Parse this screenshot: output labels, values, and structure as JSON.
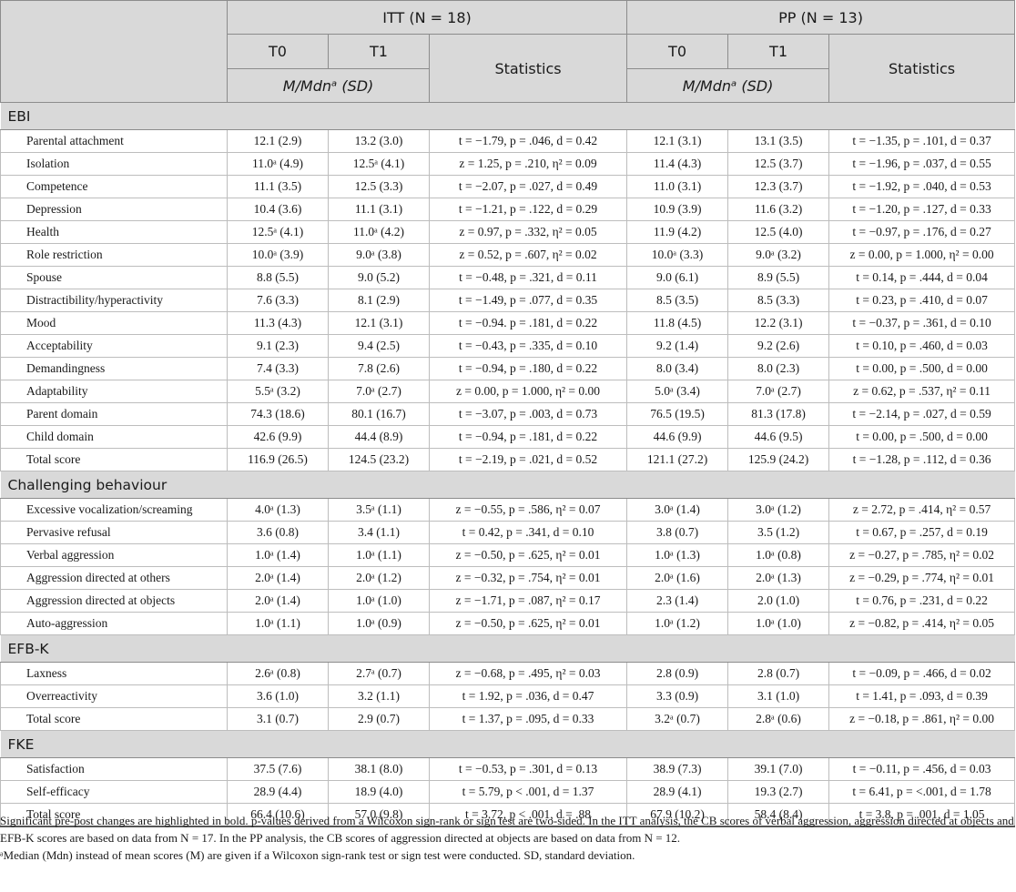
{
  "header": {
    "itt": "ITT (N = 18)",
    "pp": "PP (N = 13)",
    "t0": "T0",
    "t1": "T1",
    "statistics": "Statistics",
    "mdn": "M/Mdnᵃ (SD)"
  },
  "sections": [
    {
      "name": "EBI",
      "rows": [
        {
          "label": "Parental attachment",
          "itt_t0": "12.1 (2.9)",
          "itt_t1": "13.2 (3.0)",
          "itt_stat": "t = −1.79, p = .046, d = 0.42",
          "pp_t0": "12.1 (3.1)",
          "pp_t1": "13.1 (3.5)",
          "pp_stat": "t = −1.35, p = .101, d = 0.37"
        },
        {
          "label": "Isolation",
          "itt_t0": "11.0ᵃ (4.9)",
          "itt_t1": "12.5ᵃ (4.1)",
          "itt_stat": "z = 1.25, p = .210, η² = 0.09",
          "pp_t0": "11.4 (4.3)",
          "pp_t1": "12.5 (3.7)",
          "pp_stat": "t = −1.96, p = .037, d = 0.55"
        },
        {
          "label": "Competence",
          "itt_t0": "11.1 (3.5)",
          "itt_t1": "12.5 (3.3)",
          "itt_stat": "t = −2.07, p = .027, d = 0.49",
          "pp_t0": "11.0 (3.1)",
          "pp_t1": "12.3 (3.7)",
          "pp_stat": "t = −1.92, p = .040, d = 0.53"
        },
        {
          "label": "Depression",
          "itt_t0": "10.4 (3.6)",
          "itt_t1": "11.1 (3.1)",
          "itt_stat": "t = −1.21, p = .122, d = 0.29",
          "pp_t0": "10.9 (3.9)",
          "pp_t1": "11.6 (3.2)",
          "pp_stat": "t = −1.20, p = .127, d = 0.33"
        },
        {
          "label": "Health",
          "itt_t0": "12.5ᵃ (4.1)",
          "itt_t1": "11.0ᵃ (4.2)",
          "itt_stat": "z = 0.97, p = .332, η² = 0.05",
          "pp_t0": "11.9 (4.2)",
          "pp_t1": "12.5 (4.0)",
          "pp_stat": "t = −0.97, p = .176, d = 0.27"
        },
        {
          "label": "Role restriction",
          "itt_t0": "10.0ᵃ (3.9)",
          "itt_t1": "9.0ᵃ (3.8)",
          "itt_stat": "z = 0.52, p = .607, η² = 0.02",
          "pp_t0": "10.0ᵃ (3.3)",
          "pp_t1": "9.0ᵃ (3.2)",
          "pp_stat": "z = 0.00, p = 1.000, η² = 0.00"
        },
        {
          "label": "Spouse",
          "itt_t0": "8.8 (5.5)",
          "itt_t1": "9.0 (5.2)",
          "itt_stat": "t = −0.48, p = .321, d = 0.11",
          "pp_t0": "9.0 (6.1)",
          "pp_t1": "8.9 (5.5)",
          "pp_stat": "t = 0.14, p = .444, d = 0.04"
        },
        {
          "label": "Distractibility/hyperactivity",
          "itt_t0": "7.6 (3.3)",
          "itt_t1": "8.1 (2.9)",
          "itt_stat": "t = −1.49, p = .077, d = 0.35",
          "pp_t0": "8.5 (3.5)",
          "pp_t1": "8.5 (3.3)",
          "pp_stat": "t = 0.23, p = .410, d = 0.07"
        },
        {
          "label": "Mood",
          "itt_t0": "11.3 (4.3)",
          "itt_t1": "12.1 (3.1)",
          "itt_stat": "t = −0.94. p = .181, d = 0.22",
          "pp_t0": "11.8 (4.5)",
          "pp_t1": "12.2 (3.1)",
          "pp_stat": "t = −0.37, p = .361, d = 0.10"
        },
        {
          "label": "Acceptability",
          "itt_t0": "9.1 (2.3)",
          "itt_t1": "9.4 (2.5)",
          "itt_stat": "t = −0.43, p = .335, d = 0.10",
          "pp_t0": "9.2 (1.4)",
          "pp_t1": "9.2 (2.6)",
          "pp_stat": "t = 0.10, p = .460, d = 0.03"
        },
        {
          "label": "Demandingness",
          "itt_t0": "7.4 (3.3)",
          "itt_t1": "7.8 (2.6)",
          "itt_stat": "t = −0.94, p = .180, d = 0.22",
          "pp_t0": "8.0 (3.4)",
          "pp_t1": "8.0 (2.3)",
          "pp_stat": "t = 0.00, p = .500, d = 0.00"
        },
        {
          "label": "Adaptability",
          "itt_t0": "5.5ᵃ (3.2)",
          "itt_t1": "7.0ᵃ (2.7)",
          "itt_stat": "z = 0.00, p = 1.000, η² = 0.00",
          "pp_t0": "5.0ᵃ (3.4)",
          "pp_t1": "7.0ᵃ (2.7)",
          "pp_stat": "z = 0.62, p = .537, η² = 0.11"
        },
        {
          "label": "Parent domain",
          "itt_t0": "74.3 (18.6)",
          "itt_t1": "80.1 (16.7)",
          "itt_stat": "t = −3.07, p = .003, d = 0.73",
          "pp_t0": "76.5 (19.5)",
          "pp_t1": "81.3 (17.8)",
          "pp_stat": "t = −2.14, p = .027, d = 0.59"
        },
        {
          "label": "Child domain",
          "itt_t0": "42.6 (9.9)",
          "itt_t1": "44.4 (8.9)",
          "itt_stat": "t = −0.94, p = .181, d = 0.22",
          "pp_t0": "44.6 (9.9)",
          "pp_t1": "44.6 (9.5)",
          "pp_stat": "t = 0.00, p = .500, d = 0.00"
        },
        {
          "label": "Total score",
          "itt_t0": "116.9 (26.5)",
          "itt_t1": "124.5 (23.2)",
          "itt_stat": "t = −2.19, p = .021, d = 0.52",
          "pp_t0": "121.1 (27.2)",
          "pp_t1": "125.9 (24.2)",
          "pp_stat": "t = −1.28, p = .112, d = 0.36"
        }
      ]
    },
    {
      "name": "Challenging behaviour",
      "rows": [
        {
          "label": "Excessive vocalization/screaming",
          "itt_t0": "4.0ᵃ (1.3)",
          "itt_t1": "3.5ᵃ (1.1)",
          "itt_stat": "z = −0.55, p = .586, η² = 0.07",
          "pp_t0": "3.0ᵃ (1.4)",
          "pp_t1": "3.0ᵃ (1.2)",
          "pp_stat": "z = 2.72, p = .414, η² = 0.57"
        },
        {
          "label": "Pervasive refusal",
          "itt_t0": "3.6 (0.8)",
          "itt_t1": "3.4 (1.1)",
          "itt_stat": "t = 0.42, p = .341, d = 0.10",
          "pp_t0": "3.8 (0.7)",
          "pp_t1": "3.5 (1.2)",
          "pp_stat": "t = 0.67, p = .257, d = 0.19"
        },
        {
          "label": "Verbal aggression",
          "itt_t0": "1.0ᵃ (1.4)",
          "itt_t1": "1.0ᵃ (1.1)",
          "itt_stat": "z = −0.50, p = .625, η² = 0.01",
          "pp_t0": "1.0ᵃ (1.3)",
          "pp_t1": "1.0ᵃ (0.8)",
          "pp_stat": "z = −0.27, p = .785, η² = 0.02"
        },
        {
          "label": "Aggression directed at others",
          "itt_t0": "2.0ᵃ (1.4)",
          "itt_t1": "2.0ᵃ (1.2)",
          "itt_stat": "z = −0.32, p = .754, η² = 0.01",
          "pp_t0": "2.0ᵃ (1.6)",
          "pp_t1": "2.0ᵃ (1.3)",
          "pp_stat": "z = −0.29, p = .774, η² = 0.01"
        },
        {
          "label": "Aggression directed at objects",
          "itt_t0": "2.0ᵃ (1.4)",
          "itt_t1": "1.0ᵃ (1.0)",
          "itt_stat": "z = −1.71, p = .087, η² = 0.17",
          "pp_t0": "2.3 (1.4)",
          "pp_t1": "2.0 (1.0)",
          "pp_stat": "t = 0.76, p = .231, d = 0.22"
        },
        {
          "label": "Auto-aggression",
          "itt_t0": "1.0ᵃ (1.1)",
          "itt_t1": "1.0ᵃ (0.9)",
          "itt_stat": "z = −0.50, p = .625, η² = 0.01",
          "pp_t0": "1.0ᵃ (1.2)",
          "pp_t1": "1.0ᵃ (1.0)",
          "pp_stat": "z = −0.82, p = .414, η² = 0.05"
        }
      ]
    },
    {
      "name": "EFB-K",
      "rows": [
        {
          "label": "Laxness",
          "itt_t0": "2.6ᵃ (0.8)",
          "itt_t1": "2.7ᵃ (0.7)",
          "itt_stat": "z = −0.68, p = .495, η² = 0.03",
          "pp_t0": "2.8 (0.9)",
          "pp_t1": "2.8 (0.7)",
          "pp_stat": "t = −0.09, p = .466, d = 0.02"
        },
        {
          "label": "Overreactivity",
          "itt_t0": "3.6 (1.0)",
          "itt_t1": "3.2 (1.1)",
          "itt_stat": "t = 1.92, p = .036, d = 0.47",
          "pp_t0": "3.3 (0.9)",
          "pp_t1": "3.1 (1.0)",
          "pp_stat": "t = 1.41, p = .093, d = 0.39"
        },
        {
          "label": "Total score",
          "itt_t0": "3.1 (0.7)",
          "itt_t1": "2.9 (0.7)",
          "itt_stat": "t = 1.37, p = .095, d = 0.33",
          "pp_t0": "3.2ᵃ (0.7)",
          "pp_t1": "2.8ᵃ (0.6)",
          "pp_stat": "z = −0.18, p = .861, η² = 0.00"
        }
      ]
    },
    {
      "name": "FKE",
      "rows": [
        {
          "label": "Satisfaction",
          "itt_t0": "37.5 (7.6)",
          "itt_t1": "38.1 (8.0)",
          "itt_stat": "t = −0.53, p = .301, d = 0.13",
          "pp_t0": "38.9 (7.3)",
          "pp_t1": "39.1 (7.0)",
          "pp_stat": "t = −0.11, p = .456, d = 0.03"
        },
        {
          "label": "Self-efficacy",
          "itt_t0": "28.9 (4.4)",
          "itt_t1": "18.9 (4.0)",
          "itt_stat": "t = 5.79, p < .001, d = 1.37",
          "pp_t0": "28.9 (4.1)",
          "pp_t1": "19.3 (2.7)",
          "pp_stat": "t = 6.41, p = <.001, d = 1.78"
        },
        {
          "label": "Total score",
          "itt_t0": "66.4 (10.6)",
          "itt_t1": "57.0 (9.8)",
          "itt_stat": "t = 3.72, p < .001, d = .88",
          "pp_t0": "67.9 (10.2)",
          "pp_t1": "58.4 (8.4)",
          "pp_stat": "t = 3.8, p = .001, d = 1.05"
        }
      ]
    }
  ],
  "footnote": {
    "line1": "Significant pre-post changes are highlighted in bold. p-values derived from a Wilcoxon sign-rank or sign test are two-sided. In the ITT analysis, the CB scores of verbal aggression, aggression directed at objects and EFB-K scores are based on data from N = 17. In the PP analysis, the CB scores of aggression directed at objects are based on data from N = 12.",
    "line2": "ᵃMedian (Mdn) instead of mean scores (M) are given if a Wilcoxon sign-rank test or sign test were conducted. SD, standard deviation."
  }
}
